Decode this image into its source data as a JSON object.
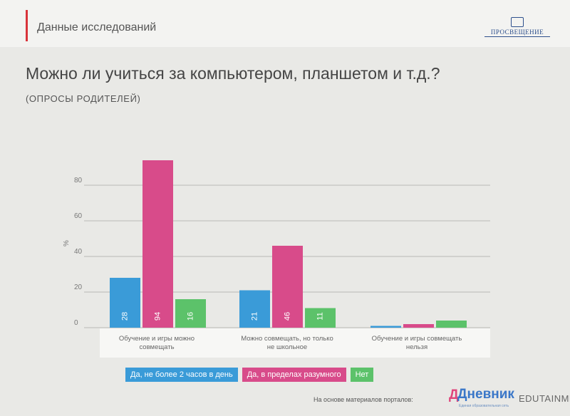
{
  "header": {
    "section_title": "Данные исследований",
    "logo_text": "ПРОСВЕЩЕНИЕ"
  },
  "title": "Можно ли учиться за компьютером, планшетом и т.д.?",
  "subtitle": "(ОПРОСЫ РОДИТЕЛЕЙ)",
  "colors": {
    "series_blue": "#3a9bd8",
    "series_pink": "#d84b8a",
    "series_green": "#5cc26a",
    "header_accent": "#d8333a"
  },
  "chart_data": {
    "type": "bar",
    "categories": [
      [
        "Обучение и игры можно",
        "совмещать"
      ],
      [
        "Можно совмещать, но только",
        "не школьное"
      ],
      [
        "Обучение и игры совмещать",
        "нельзя"
      ]
    ],
    "series": [
      {
        "name": "Да, не более 2 часов в день",
        "values": [
          28,
          21,
          1
        ],
        "labels": [
          "28",
          "21",
          ""
        ]
      },
      {
        "name": "Да, в пределах разумного",
        "values": [
          94,
          46,
          2
        ],
        "labels": [
          "94",
          "46",
          ""
        ]
      },
      {
        "name": "Нет",
        "values": [
          16,
          11,
          4
        ],
        "labels": [
          "16",
          "11",
          ""
        ]
      }
    ],
    "ylabel": "%",
    "yticks": [
      0,
      20,
      40,
      60,
      80
    ],
    "ylim": [
      0,
      95
    ],
    "grid": true,
    "legend": "bottom"
  },
  "footer": {
    "source_text": "На основе материалов порталов:",
    "portal1_name": "Дневник",
    "portal1_mark": "Д",
    "portal1_tagline": "Единая образовательная сеть",
    "portal2_name": "EDUTAINME"
  }
}
